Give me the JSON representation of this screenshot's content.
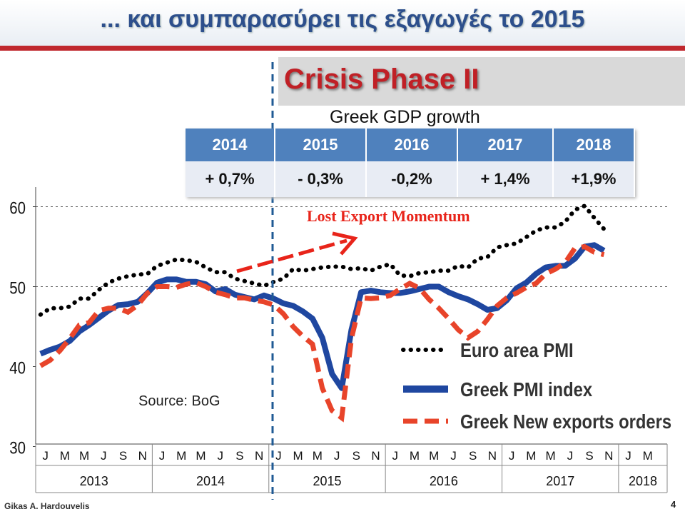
{
  "title": "... και συμπαρασύρει τις εξαγωγές το 2015",
  "crisis_label": "Crisis  Phase II",
  "gdp": {
    "title": "Greek GDP growth",
    "years": [
      "2014",
      "2015",
      "2016",
      "2017",
      "2018"
    ],
    "growth": [
      "+ 0,7%",
      "- 0,3%",
      "-0,2%",
      "+ 1,4%",
      "+1,9%"
    ]
  },
  "annotation": "Lost Export Momentum",
  "source": "Source:  BoG",
  "author": "Gikas A. Hardouvelis",
  "page_number": "4",
  "colors": {
    "euro": "#000000",
    "greek_pmi": "#1f47a0",
    "exports": "#e8442a",
    "title": "#2d4f8c",
    "accent_red": "#c0282e"
  },
  "chart_data": {
    "type": "line",
    "ylim": [
      30,
      62
    ],
    "yticks": [
      "30",
      "40",
      "50",
      "60"
    ],
    "month_labels": [
      "J",
      "M",
      "M",
      "J",
      "S",
      "N",
      "J",
      "M",
      "M",
      "J",
      "S",
      "N",
      "J",
      "M",
      "M",
      "J",
      "S",
      "N",
      "J",
      "M",
      "M",
      "J",
      "S",
      "N",
      "J",
      "M",
      "M",
      "J",
      "S",
      "N",
      "J",
      "M"
    ],
    "year_labels": [
      "2013",
      "2014",
      "2015",
      "2016",
      "2017",
      "2018"
    ],
    "series": [
      {
        "name": "Euro area PMI",
        "style": "dotted",
        "values": [
          46.5,
          47.3,
          47.3,
          47.5,
          48.5,
          48.5,
          49.6,
          50.5,
          51.0,
          51.3,
          51.5,
          51.6,
          52.6,
          53.0,
          53.4,
          53.3,
          53.1,
          52.4,
          51.8,
          51.8,
          51.0,
          50.7,
          50.4,
          50.1,
          50.6,
          51.0,
          52.2,
          52.0,
          52.2,
          52.4,
          52.5,
          52.5,
          52.2,
          52.3,
          52.0,
          52.5,
          52.8,
          51.4,
          51.3,
          51.7,
          51.8,
          52.0,
          52.0,
          52.6,
          52.4,
          53.5,
          53.7,
          54.9,
          55.2,
          55.4,
          56.2,
          57.0,
          57.4,
          57.4,
          58.1,
          59.6,
          60.1,
          58.6,
          57.2
        ]
      },
      {
        "name": "Greek PMI index",
        "style": "solid",
        "values": [
          41.6,
          42.1,
          42.5,
          43.2,
          44.4,
          45.2,
          46.1,
          47.0,
          47.7,
          47.8,
          48.1,
          49.2,
          50.5,
          50.9,
          50.9,
          50.6,
          50.6,
          50.3,
          49.4,
          49.7,
          49.0,
          48.7,
          48.4,
          48.9,
          48.5,
          47.9,
          47.6,
          46.9,
          46.0,
          43.6,
          39.1,
          37.3,
          44.6,
          49.3,
          49.5,
          49.3,
          49.2,
          49.2,
          49.4,
          49.7,
          50.0,
          50.0,
          49.3,
          48.8,
          48.4,
          47.8,
          47.1,
          47.3,
          48.3,
          49.8,
          50.5,
          51.6,
          52.4,
          52.6,
          52.6,
          53.5,
          55.0,
          55.2,
          54.5
        ]
      },
      {
        "name": "Greek New exports orders",
        "style": "dashed",
        "values": [
          40.1,
          40.8,
          42.0,
          43.5,
          45.2,
          45.5,
          47.0,
          47.3,
          47.3,
          46.8,
          47.7,
          49.2,
          50.0,
          50.0,
          49.9,
          50.3,
          50.5,
          50.0,
          49.3,
          49.0,
          48.6,
          48.6,
          48.3,
          48.1,
          47.7,
          46.6,
          45.0,
          43.8,
          42.8,
          37.3,
          34.5,
          33.6,
          43.5,
          48.6,
          48.5,
          48.6,
          48.9,
          49.7,
          50.4,
          49.8,
          48.4,
          47.3,
          46.0,
          44.6,
          43.6,
          44.4,
          45.9,
          47.6,
          48.6,
          49.2,
          49.9,
          50.4,
          51.6,
          52.2,
          53.0,
          54.8,
          55.0,
          54.3,
          54.0
        ]
      }
    ]
  }
}
